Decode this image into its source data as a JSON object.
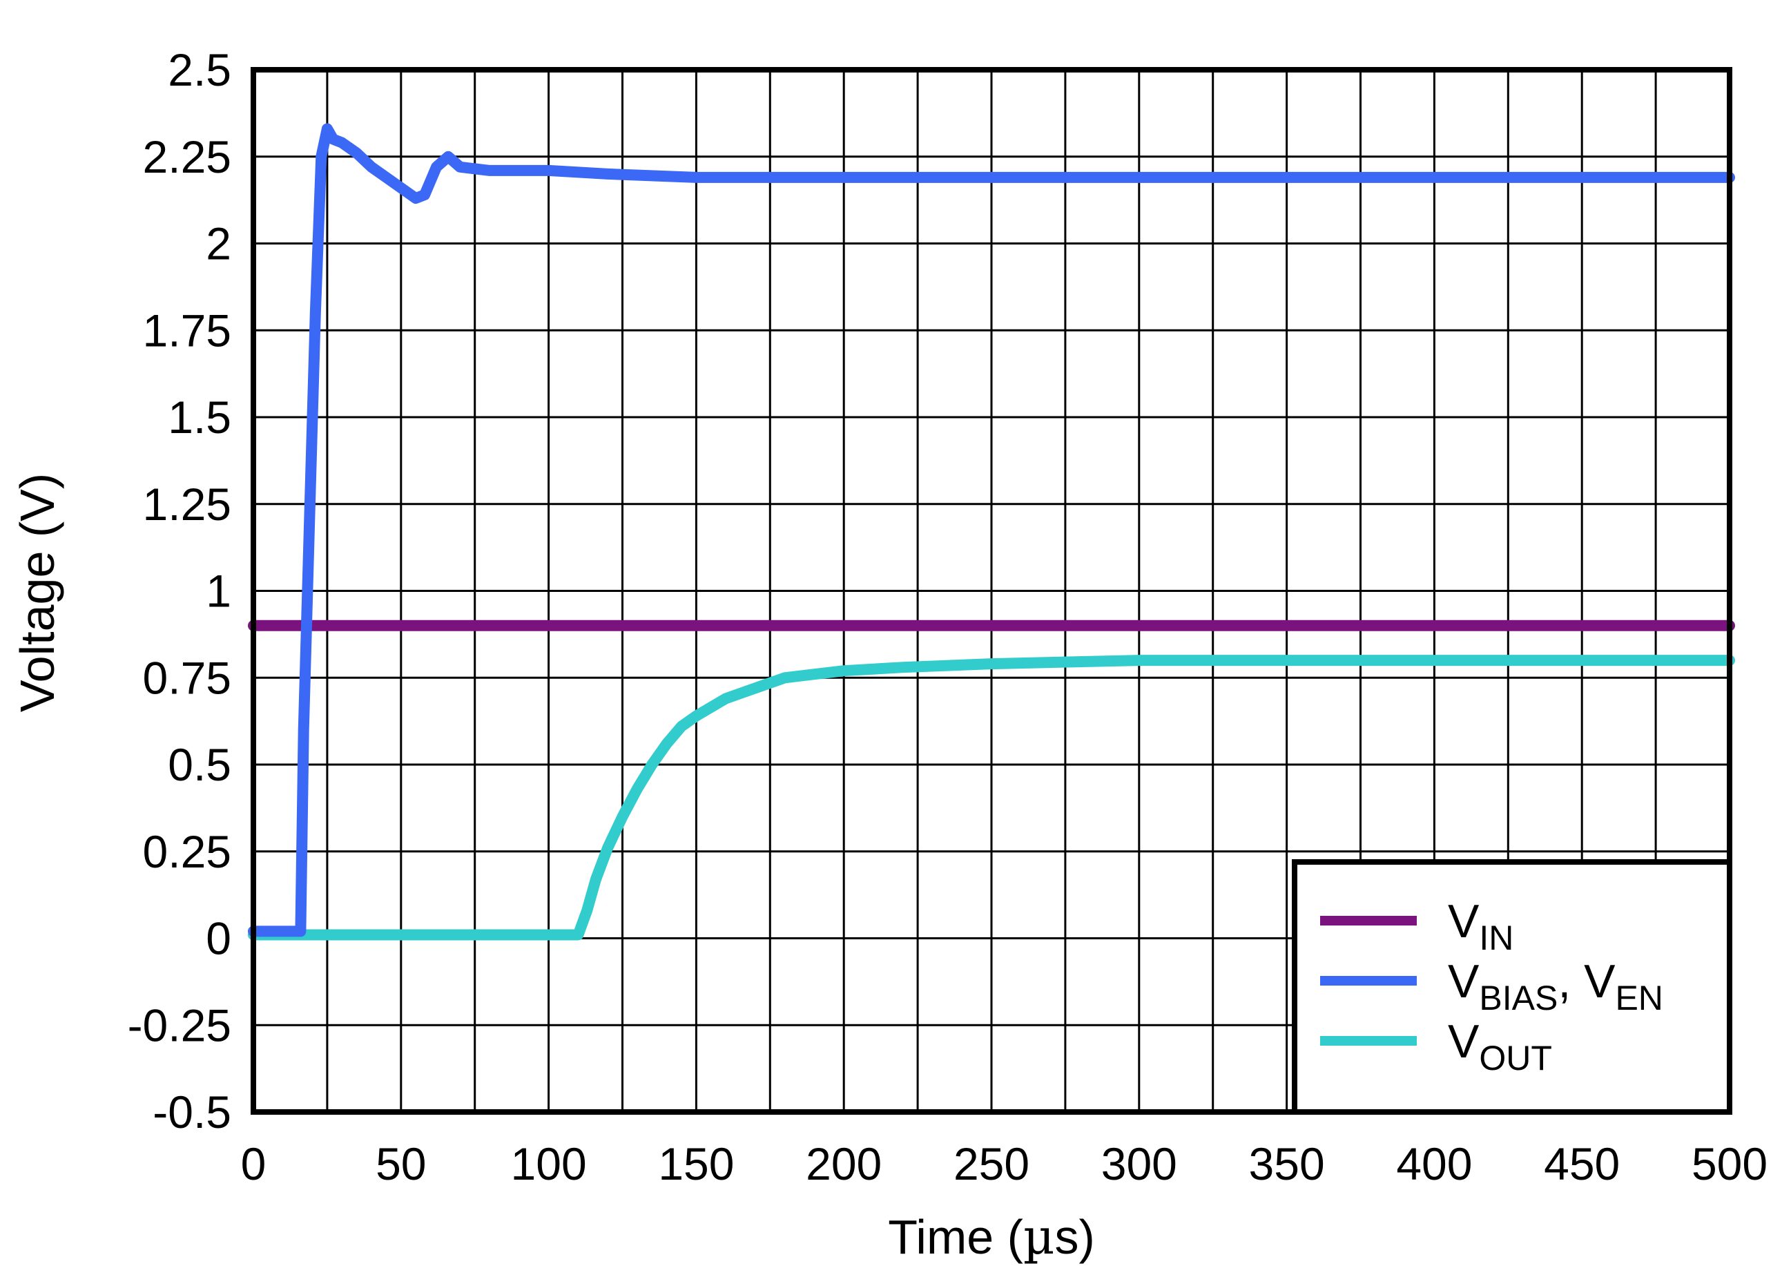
{
  "chart_data": {
    "type": "line",
    "title": "",
    "xlabel_prefix": "Time (",
    "xlabel_unit": "µ",
    "xlabel_suffix": "s)",
    "ylabel": "Voltage (V)",
    "xlim": [
      0,
      500
    ],
    "ylim": [
      -0.5,
      2.5
    ],
    "x_ticks": [
      0,
      50,
      100,
      150,
      200,
      250,
      300,
      350,
      400,
      450,
      500
    ],
    "x_tick_labels": [
      "0",
      "50",
      "100",
      "150",
      "200",
      "250",
      "300",
      "350",
      "400",
      "450",
      "500"
    ],
    "y_ticks": [
      2.5,
      2.25,
      2,
      1.75,
      1.5,
      1.25,
      1,
      0.75,
      0.5,
      0.25,
      0,
      -0.25,
      -0.5
    ],
    "y_tick_labels": [
      "2.5",
      "2.25",
      "2",
      "1.75",
      "1.5",
      "1.25",
      "1",
      "0.75",
      "0.5",
      "0.25",
      "0",
      "-0.25",
      "-0.5"
    ],
    "x_minor_step": 25,
    "grid": true,
    "legend_position": "bottom-right",
    "series": [
      {
        "name": "VIN",
        "legend": [
          {
            "t": "V",
            "sub": false
          },
          {
            "t": "IN",
            "sub": true
          }
        ],
        "color": "#7a137e",
        "x": [
          0,
          500
        ],
        "y": [
          0.9,
          0.9
        ]
      },
      {
        "name": "VBIAS, VEN",
        "legend": [
          {
            "t": "V",
            "sub": false
          },
          {
            "t": "BIAS",
            "sub": true
          },
          {
            "t": ", V",
            "sub": false
          },
          {
            "t": "EN",
            "sub": true
          }
        ],
        "color": "#3b68f5",
        "x": [
          0,
          16,
          17,
          19,
          21,
          23,
          25,
          27,
          30,
          35,
          40,
          45,
          50,
          55,
          58,
          62,
          66,
          70,
          80,
          90,
          100,
          120,
          150,
          200,
          300,
          400,
          500
        ],
        "y": [
          0.02,
          0.02,
          0.6,
          1.2,
          1.8,
          2.25,
          2.33,
          2.3,
          2.29,
          2.26,
          2.22,
          2.19,
          2.16,
          2.13,
          2.14,
          2.22,
          2.25,
          2.22,
          2.21,
          2.21,
          2.21,
          2.2,
          2.19,
          2.19,
          2.19,
          2.19,
          2.19
        ]
      },
      {
        "name": "VOUT",
        "legend": [
          {
            "t": "V",
            "sub": false
          },
          {
            "t": "OUT",
            "sub": true
          }
        ],
        "color": "#33cccc",
        "x": [
          0,
          50,
          100,
          110,
          113,
          116,
          120,
          125,
          130,
          135,
          140,
          145,
          150,
          160,
          170,
          180,
          190,
          200,
          220,
          250,
          300,
          350,
          400,
          450,
          500
        ],
        "y": [
          0.01,
          0.01,
          0.01,
          0.01,
          0.08,
          0.17,
          0.26,
          0.35,
          0.43,
          0.5,
          0.56,
          0.61,
          0.64,
          0.69,
          0.72,
          0.75,
          0.76,
          0.77,
          0.78,
          0.79,
          0.8,
          0.8,
          0.8,
          0.8,
          0.8
        ]
      }
    ]
  }
}
